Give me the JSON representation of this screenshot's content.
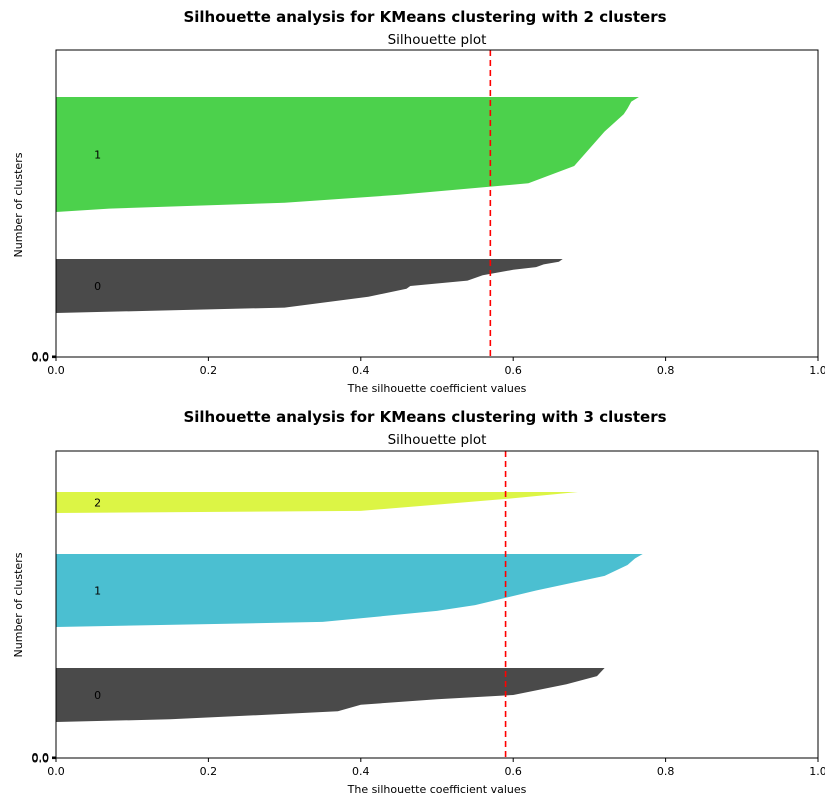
{
  "chart_data": [
    {
      "type": "area",
      "title": "Silhouette analysis for KMeans clustering with 2 clusters",
      "subtitle": "Silhouette plot",
      "xlabel": "The silhouette coefficient values",
      "ylabel": "Number of clusters",
      "xlim": [
        0,
        1
      ],
      "xticks": [
        "0.0",
        "0.2",
        "0.4",
        "0.6",
        "0.8",
        "1.0"
      ],
      "yticks": [
        "0.0",
        "0.0",
        "0.0"
      ],
      "average_silhouette": 0.57,
      "average_line_color": "#ff0000",
      "series": [
        {
          "name": "0",
          "color": "#4a4a4a",
          "profile": [
            [
              0.0,
              0.665
            ],
            [
              0.05,
              0.66
            ],
            [
              0.1,
              0.64
            ],
            [
              0.15,
              0.63
            ],
            [
              0.2,
              0.6
            ],
            [
              0.3,
              0.56
            ],
            [
              0.4,
              0.54
            ],
            [
              0.5,
              0.465
            ],
            [
              0.55,
              0.46
            ],
            [
              0.7,
              0.41
            ],
            [
              0.9,
              0.3
            ],
            [
              1.0,
              0.0
            ]
          ]
        },
        {
          "name": "1",
          "color": "#4cd14c",
          "profile": [
            [
              0.0,
              0.765
            ],
            [
              0.04,
              0.755
            ],
            [
              0.1,
              0.75
            ],
            [
              0.15,
              0.745
            ],
            [
              0.3,
              0.72
            ],
            [
              0.45,
              0.7
            ],
            [
              0.6,
              0.68
            ],
            [
              0.75,
              0.62
            ],
            [
              0.85,
              0.45
            ],
            [
              0.92,
              0.3
            ],
            [
              0.97,
              0.07
            ],
            [
              1.0,
              0.0
            ]
          ]
        }
      ]
    },
    {
      "type": "area",
      "title": "Silhouette analysis for KMeans clustering with 3 clusters",
      "subtitle": "Silhouette plot",
      "xlabel": "The silhouette coefficient values",
      "ylabel": "Number of clusters",
      "xlim": [
        0,
        1
      ],
      "xticks": [
        "0.0",
        "0.2",
        "0.4",
        "0.6",
        "0.8",
        "1.0"
      ],
      "yticks": [
        "0.0",
        "0.0",
        "0.0"
      ],
      "average_silhouette": 0.59,
      "average_line_color": "#ff0000",
      "series": [
        {
          "name": "0",
          "color": "#4a4a4a",
          "profile": [
            [
              0.0,
              0.72
            ],
            [
              0.15,
              0.71
            ],
            [
              0.3,
              0.67
            ],
            [
              0.5,
              0.6
            ],
            [
              0.58,
              0.5
            ],
            [
              0.68,
              0.4
            ],
            [
              0.8,
              0.37
            ],
            [
              0.85,
              0.3
            ],
            [
              0.95,
              0.15
            ],
            [
              1.0,
              0.0
            ]
          ]
        },
        {
          "name": "1",
          "color": "#4bbfd1",
          "profile": [
            [
              0.0,
              0.77
            ],
            [
              0.06,
              0.76
            ],
            [
              0.15,
              0.75
            ],
            [
              0.3,
              0.72
            ],
            [
              0.5,
              0.63
            ],
            [
              0.7,
              0.55
            ],
            [
              0.78,
              0.5
            ],
            [
              0.93,
              0.35
            ],
            [
              1.0,
              0.0
            ]
          ]
        },
        {
          "name": "2",
          "color": "#dcf545",
          "profile": [
            [
              0.0,
              0.685
            ],
            [
              0.3,
              0.6
            ],
            [
              0.6,
              0.5
            ],
            [
              0.9,
              0.4
            ],
            [
              1.0,
              0.0
            ]
          ]
        }
      ]
    }
  ]
}
